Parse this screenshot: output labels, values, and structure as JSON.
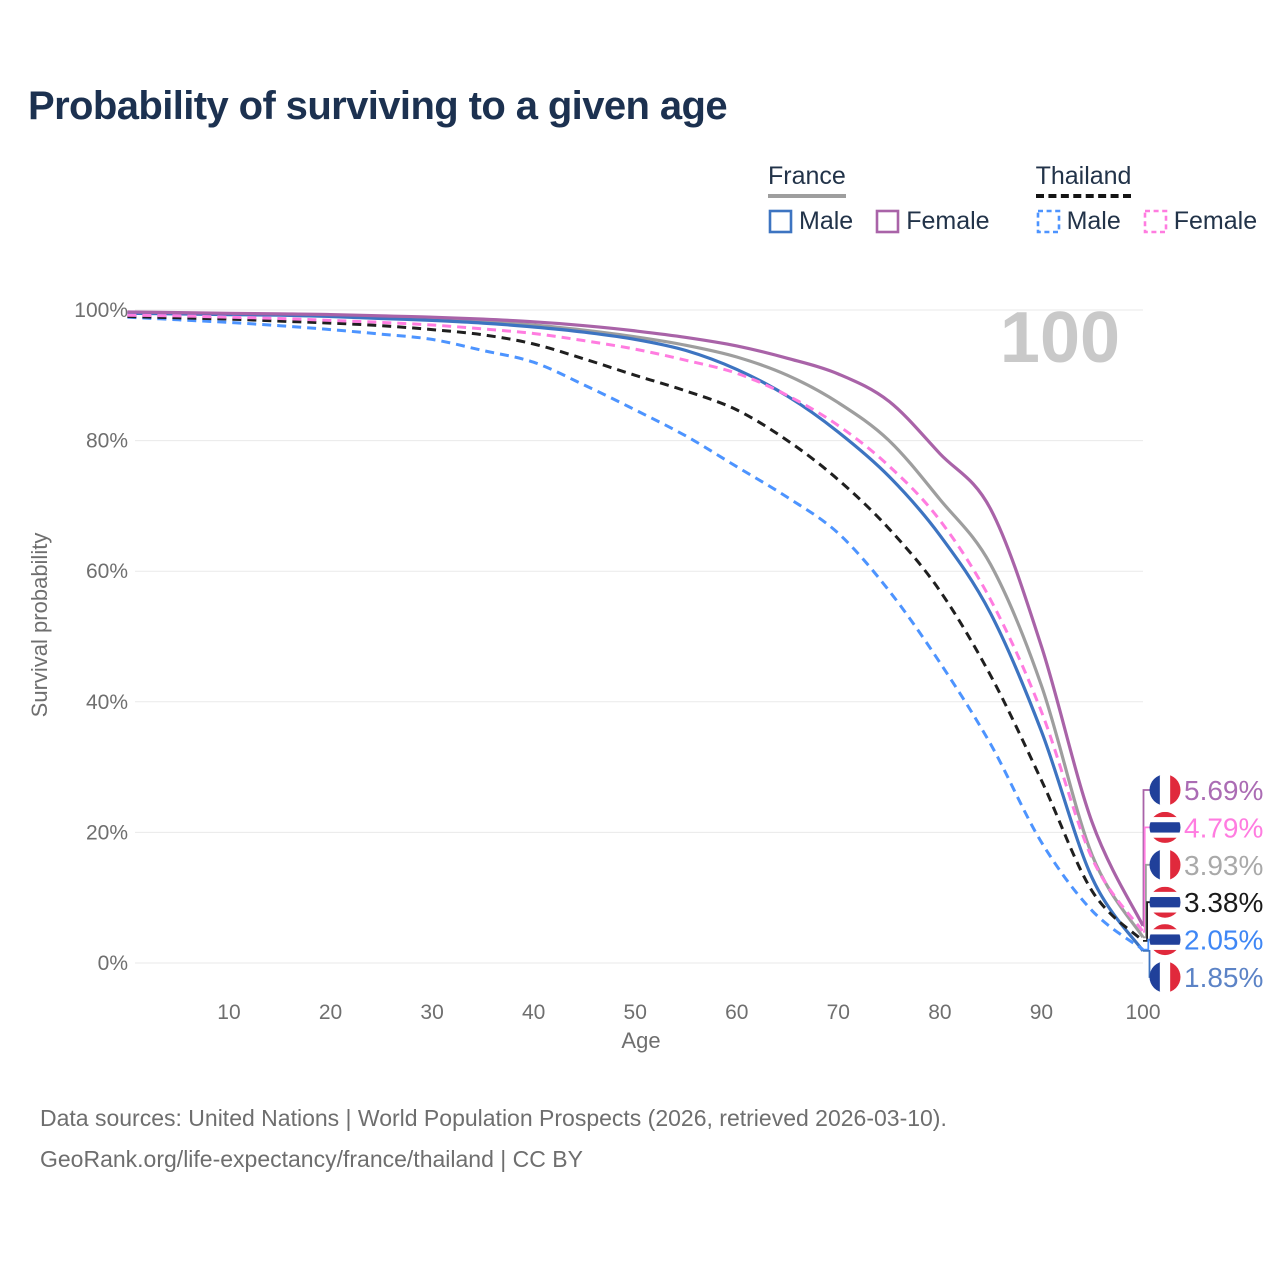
{
  "title": "Probability of surviving to a given age",
  "watermark_age": "100",
  "legend": {
    "france": {
      "label": "France",
      "male": "Male",
      "female": "Female"
    },
    "thailand": {
      "label": "Thailand",
      "male": "Male",
      "female": "Female"
    }
  },
  "chart_data": {
    "type": "line",
    "title": "Probability of surviving to a given age",
    "xlabel": "Age",
    "ylabel": "Survival probability",
    "xlim": [
      0,
      100
    ],
    "ylim": [
      0,
      100
    ],
    "grid": true,
    "x_ticks": [
      10,
      20,
      30,
      40,
      50,
      60,
      70,
      80,
      90,
      100
    ],
    "y_ticks": [
      0,
      20,
      40,
      60,
      80,
      100
    ],
    "x": [
      0,
      5,
      10,
      15,
      20,
      25,
      30,
      35,
      40,
      45,
      50,
      55,
      60,
      65,
      70,
      75,
      80,
      85,
      90,
      95,
      100
    ],
    "draw_order": [
      2,
      5,
      0,
      4,
      3,
      1
    ],
    "flag_colors": {
      "france": [
        "#20409a",
        "#ffffff",
        "#e0293c"
      ],
      "thailand": [
        "#e0293c",
        "#ffffff",
        "#20409a",
        "#ffffff",
        "#e0293c"
      ]
    },
    "series": [
      {
        "id": "france-female",
        "name": "France Female",
        "country": "France",
        "sex": "Female",
        "color": "#a963a8",
        "label_color": "#ab6cb4",
        "dashed": false,
        "flag": "france",
        "end_label": "5.69%",
        "values": [
          99.7,
          99.6,
          99.5,
          99.4,
          99.3,
          99.1,
          98.9,
          98.6,
          98.2,
          97.6,
          96.8,
          95.8,
          94.5,
          92.6,
          90.2,
          86.0,
          78.0,
          69.5,
          48.5,
          21.5,
          5.69
        ]
      },
      {
        "id": "thailand-female",
        "name": "Thailand Female",
        "country": "Thailand",
        "sex": "Female",
        "color": "#ff7ce0",
        "label_color": "#ff7ce0",
        "dashed": true,
        "flag": "thailand",
        "end_label": "4.79%",
        "values": [
          99.2,
          99.1,
          98.9,
          98.7,
          98.4,
          98.1,
          97.7,
          97.1,
          96.4,
          95.3,
          94.0,
          92.3,
          90.3,
          86.9,
          82.3,
          76.1,
          67.8,
          55.6,
          38.5,
          16.0,
          4.79
        ]
      },
      {
        "id": "france-total",
        "name": "France",
        "country": "France",
        "sex": "Both",
        "color": "#9e9e9e",
        "label_color": "#a9a9a9",
        "dashed": false,
        "flag": "france",
        "end_label": "3.93%",
        "values": [
          99.6,
          99.5,
          99.4,
          99.3,
          99.1,
          98.9,
          98.6,
          98.2,
          97.7,
          96.9,
          95.9,
          94.6,
          92.8,
          90.0,
          85.8,
          80.0,
          71.0,
          61.0,
          42.5,
          16.5,
          3.93
        ]
      },
      {
        "id": "thailand-total",
        "name": "Thailand",
        "country": "Thailand",
        "sex": "Both",
        "color": "#1f1f1f",
        "label_color": "#1a1a1a",
        "dashed": true,
        "flag": "thailand",
        "end_label": "3.38%",
        "values": [
          99.0,
          98.8,
          98.6,
          98.3,
          98.0,
          97.6,
          97.0,
          96.2,
          94.8,
          92.5,
          90.0,
          87.6,
          84.7,
          80.0,
          74.0,
          66.5,
          57.0,
          44.0,
          28.0,
          11.0,
          3.38
        ]
      },
      {
        "id": "thailand-male",
        "name": "Thailand Male",
        "country": "Thailand",
        "sex": "Male",
        "color": "#4d94ff",
        "label_color": "#3f87f5",
        "dashed": true,
        "flag": "thailand",
        "end_label": "2.05%",
        "values": [
          98.9,
          98.5,
          98.1,
          97.6,
          97.0,
          96.3,
          95.5,
          93.8,
          92.0,
          88.5,
          84.7,
          80.7,
          76.0,
          71.3,
          65.8,
          57.0,
          46.0,
          33.5,
          18.5,
          8.0,
          2.05
        ]
      },
      {
        "id": "france-male",
        "name": "France Male",
        "country": "France",
        "sex": "Male",
        "color": "#3d74c1",
        "label_color": "#5c83c6",
        "dashed": false,
        "flag": "france",
        "end_label": "1.85%",
        "values": [
          99.5,
          99.4,
          99.3,
          99.2,
          99.0,
          98.7,
          98.4,
          98.0,
          97.4,
          96.6,
          95.5,
          93.8,
          90.9,
          86.8,
          81.3,
          74.5,
          65.5,
          53.5,
          35.5,
          13.0,
          1.85
        ]
      }
    ]
  },
  "footer": {
    "line1": "Data sources: United Nations | World Population Prospects (2026, retrieved 2026-03-10).",
    "line2": "GeoRank.org/life-expectancy/france/thailand | CC BY"
  }
}
